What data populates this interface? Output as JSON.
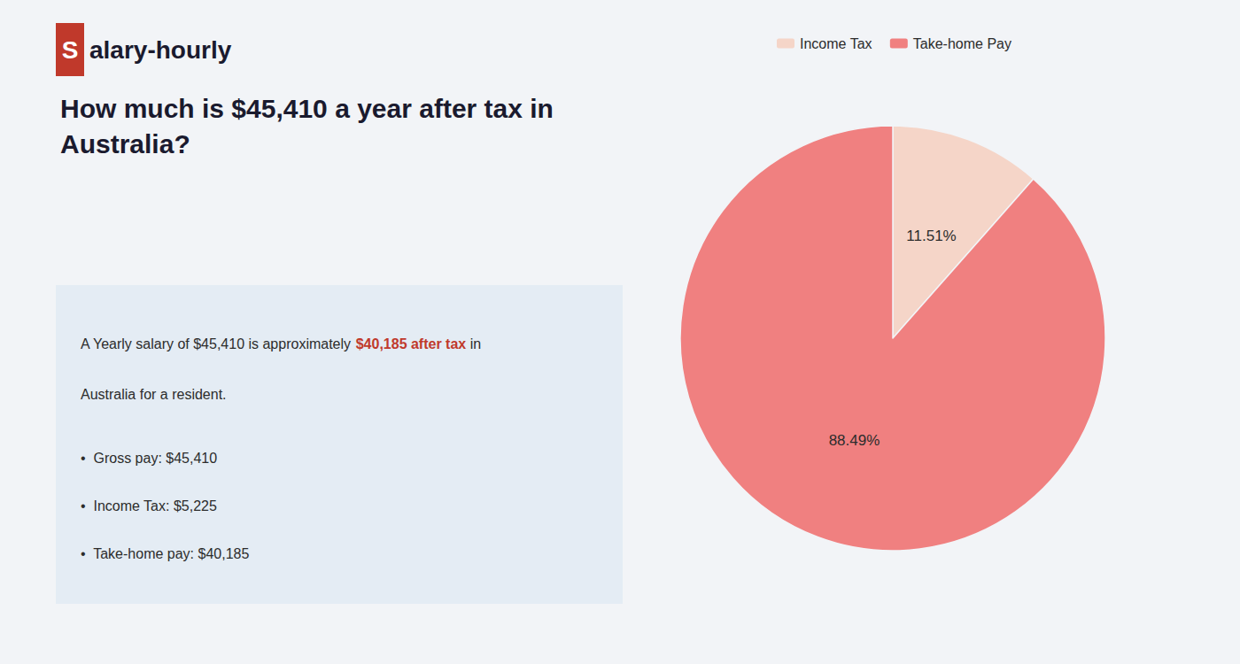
{
  "chart_data": {
    "type": "pie",
    "title": "How much is $45,410 a year after tax in\nAustralia?",
    "categories": [
      "Income Tax",
      "Take-home Pay"
    ],
    "values": [
      11.51,
      88.49
    ],
    "value_labels": [
      "11.51%",
      "88.49%"
    ],
    "colors": [
      "#f5d5c8",
      "#f08080"
    ],
    "data_labels": true,
    "legend": "top",
    "annotations": [
      {
        "text": "S"
      },
      {
        "text": "alary-hourly"
      },
      {
        "text": "A Yearly salary of $45,410 is approximately "
      },
      {
        "text": "$40,185 after tax",
        "color": "#c0392b"
      },
      {
        "text": " in"
      },
      {
        "text": "Australia for a resident."
      },
      {
        "text": "•  Gross pay: $45,410"
      },
      {
        "text": "•  Income Tax: $5,225"
      },
      {
        "text": "•  Take-home pay: $40,185"
      }
    ]
  }
}
